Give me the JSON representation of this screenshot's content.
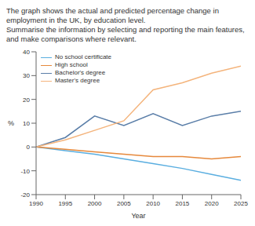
{
  "chart_data": {
    "type": "line",
    "title": "The graph shows the actual and predicted percentage change in employment in the UK, by education level.",
    "subtitle": "Summarise the information by selecting and reporting the main features, and make comparisons where relevant.",
    "x_label": "Year",
    "y_label": "%",
    "x": [
      1990,
      1995,
      2000,
      2005,
      2010,
      2015,
      2020,
      2025
    ],
    "series": [
      {
        "name": "No school certificate",
        "color": "#5aaee0",
        "values": [
          0,
          -1.5,
          -3,
          -5,
          -7,
          -9,
          -11.5,
          -14
        ]
      },
      {
        "name": "High school",
        "color": "#e6893c",
        "values": [
          0,
          -1,
          -2,
          -3,
          -4,
          -4,
          -5,
          -4
        ]
      },
      {
        "name": "Bachelor's degree",
        "color": "#5a7ea8",
        "values": [
          0,
          4,
          13,
          9,
          14,
          9,
          13,
          15
        ]
      },
      {
        "name": "Master's degree",
        "color": "#f4b47c",
        "values": [
          0,
          3,
          7,
          11,
          24,
          27,
          31,
          34
        ]
      }
    ],
    "xlim": [
      1990,
      2025
    ],
    "xticks": [
      1990,
      1995,
      2000,
      2005,
      2010,
      2015,
      2020,
      2025
    ],
    "ylim": [
      -20,
      40
    ],
    "yticks": [
      -20,
      -10,
      0,
      10,
      20,
      30,
      40
    ],
    "grid": false,
    "legend": "upper left"
  }
}
